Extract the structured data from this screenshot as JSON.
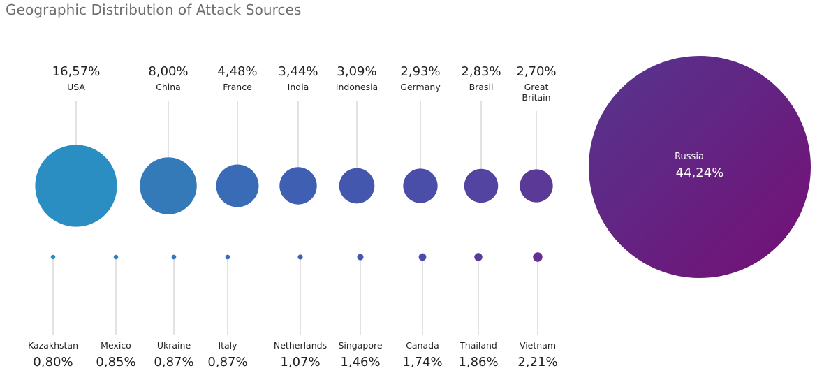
{
  "title": "Geographic Distribution of Attack Sources",
  "chart_data": {
    "type": "bubble",
    "title": "Geographic Distribution of Attack Sources",
    "unit": "%",
    "highlight": {
      "name": "Russia",
      "label": "44,24%",
      "value": 44.24,
      "color": "#6f1a80"
    },
    "top_row": [
      {
        "name": "USA",
        "label": "16,57%",
        "value": 16.57,
        "color": "#2a8ec2"
      },
      {
        "name": "China",
        "label": "8,00%",
        "value": 8.0,
        "color": "#3479b8"
      },
      {
        "name": "France",
        "label": "4,48%",
        "value": 4.48,
        "color": "#3a6bb6"
      },
      {
        "name": "India",
        "label": "3,44%",
        "value": 3.44,
        "color": "#3f5fb2"
      },
      {
        "name": "Indonesia",
        "label": "3,09%",
        "value": 3.09,
        "color": "#4457ae"
      },
      {
        "name": "Germany",
        "label": "2,93%",
        "value": 2.93,
        "color": "#4a4ea8"
      },
      {
        "name": "Brasil",
        "label": "2,83%",
        "value": 2.83,
        "color": "#5244a0"
      },
      {
        "name": "Great\nBritain",
        "label": "2,70%",
        "value": 2.7,
        "color": "#5b3996"
      }
    ],
    "bottom_row": [
      {
        "name": "Kazakhstan",
        "label": "0,80%",
        "value": 0.8,
        "color": "#2a8ec2"
      },
      {
        "name": "Mexico",
        "label": "0,85%",
        "value": 0.85,
        "color": "#3080bd"
      },
      {
        "name": "Ukraine",
        "label": "0,87%",
        "value": 0.87,
        "color": "#3575b9"
      },
      {
        "name": "Italy",
        "label": "0,87%",
        "value": 0.87,
        "color": "#3a6bb6"
      },
      {
        "name": "Netherlands",
        "label": "1,07%",
        "value": 1.07,
        "color": "#3f5fb2"
      },
      {
        "name": "Singapore",
        "label": "1,46%",
        "value": 1.46,
        "color": "#4457ae"
      },
      {
        "name": "Canada",
        "label": "1,74%",
        "value": 1.74,
        "color": "#4a4ea8"
      },
      {
        "name": "Thailand",
        "label": "1,86%",
        "value": 1.86,
        "color": "#5a3a98"
      },
      {
        "name": "Vietnam",
        "label": "2,21%",
        "value": 2.21,
        "color": "#63308f"
      }
    ]
  }
}
